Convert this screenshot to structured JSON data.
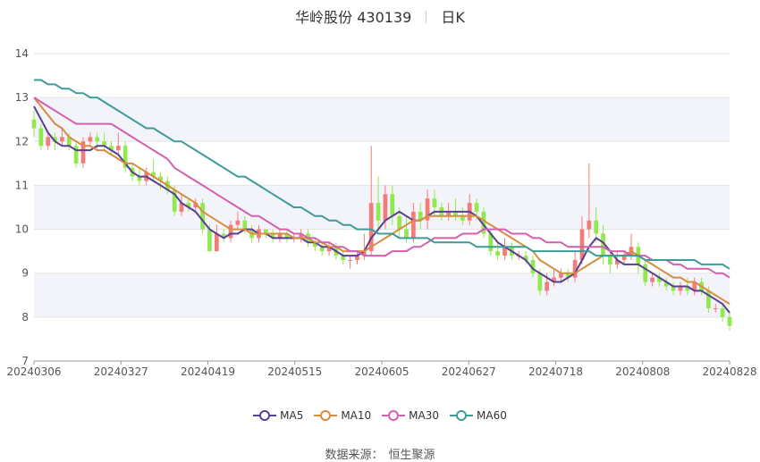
{
  "header": {
    "stock": "华岭股份 430139",
    "period": "日K"
  },
  "source": {
    "label": "数据来源：",
    "value": "恒生聚源"
  },
  "colors": {
    "up": "#f47b7b",
    "down": "#91e84f",
    "ma5": "#5b3f8f",
    "ma10": "#d98c3f",
    "ma30": "#d45fb0",
    "ma60": "#3f9a9a"
  },
  "chart_data": {
    "type": "candlestick",
    "y_ticks": [
      "7",
      "8",
      "9",
      "10",
      "11",
      "12",
      "13",
      "14"
    ],
    "ylim": [
      7,
      14
    ],
    "x_tick_labels": [
      "20240306",
      "20240327",
      "20240419",
      "20240515",
      "20240605",
      "20240627",
      "20240718",
      "20240808",
      "20240828"
    ],
    "legend": [
      {
        "name": "MA5",
        "color": "#5b3f8f"
      },
      {
        "name": "MA10",
        "color": "#d98c3f"
      },
      {
        "name": "MA30",
        "color": "#d45fb0"
      },
      {
        "name": "MA60",
        "color": "#3f9a9a"
      }
    ],
    "candles": [
      [
        12.5,
        12.3,
        12.7,
        12.1
      ],
      [
        12.3,
        11.9,
        12.4,
        11.8
      ],
      [
        11.9,
        12.1,
        12.2,
        11.8
      ],
      [
        12.1,
        12.0,
        12.2,
        11.8
      ],
      [
        12.0,
        12.1,
        12.3,
        11.9
      ],
      [
        12.1,
        11.9,
        12.2,
        11.8
      ],
      [
        11.9,
        11.5,
        12.0,
        11.4
      ],
      [
        11.5,
        12.0,
        12.1,
        11.4
      ],
      [
        12.0,
        12.1,
        12.2,
        11.9
      ],
      [
        12.1,
        12.0,
        12.2,
        11.8
      ],
      [
        12.0,
        11.9,
        12.2,
        11.8
      ],
      [
        11.9,
        11.8,
        12.0,
        11.7
      ],
      [
        11.8,
        11.9,
        12.2,
        11.7
      ],
      [
        11.9,
        11.4,
        12.0,
        11.3
      ],
      [
        11.4,
        11.2,
        11.5,
        11.1
      ],
      [
        11.2,
        11.1,
        11.4,
        11.0
      ],
      [
        11.1,
        11.3,
        11.4,
        11.0
      ],
      [
        11.3,
        11.2,
        11.6,
        11.1
      ],
      [
        11.2,
        11.1,
        11.3,
        10.9
      ],
      [
        11.1,
        10.9,
        11.2,
        10.8
      ],
      [
        10.9,
        10.4,
        11.0,
        10.3
      ],
      [
        10.4,
        10.6,
        10.8,
        10.3
      ],
      [
        10.6,
        10.5,
        10.7,
        10.4
      ],
      [
        10.5,
        10.6,
        10.7,
        10.4
      ],
      [
        10.6,
        10.0,
        10.7,
        9.9
      ],
      [
        10.0,
        9.5,
        10.1,
        9.5
      ],
      [
        9.5,
        9.9,
        10.1,
        9.5
      ],
      [
        9.9,
        9.8,
        10.0,
        9.7
      ],
      [
        9.8,
        10.1,
        10.2,
        9.7
      ],
      [
        10.1,
        10.2,
        10.4,
        10.0
      ],
      [
        10.2,
        10.0,
        10.3,
        9.9
      ],
      [
        10.0,
        9.8,
        10.1,
        9.7
      ],
      [
        9.8,
        10.0,
        10.1,
        9.7
      ],
      [
        10.0,
        9.9,
        10.0,
        9.8
      ],
      [
        9.9,
        9.8,
        10.0,
        9.7
      ],
      [
        9.8,
        9.9,
        10.0,
        9.7
      ],
      [
        9.9,
        9.8,
        10.0,
        9.7
      ],
      [
        9.8,
        9.8,
        9.9,
        9.7
      ],
      [
        9.8,
        9.9,
        10.0,
        9.7
      ],
      [
        9.9,
        9.7,
        10.0,
        9.6
      ],
      [
        9.7,
        9.6,
        9.8,
        9.5
      ],
      [
        9.6,
        9.5,
        9.7,
        9.4
      ],
      [
        9.5,
        9.6,
        9.7,
        9.4
      ],
      [
        9.6,
        9.4,
        9.7,
        9.3
      ],
      [
        9.4,
        9.3,
        9.5,
        9.2
      ],
      [
        9.3,
        9.3,
        9.4,
        9.1
      ],
      [
        9.3,
        9.4,
        9.5,
        9.2
      ],
      [
        9.4,
        9.5,
        9.9,
        9.3
      ],
      [
        9.5,
        10.6,
        11.9,
        9.4
      ],
      [
        10.6,
        10.2,
        11.2,
        10.0
      ],
      [
        10.2,
        10.8,
        11.0,
        10.0
      ],
      [
        10.8,
        10.3,
        11.0,
        10.1
      ],
      [
        10.3,
        10.0,
        10.5,
        9.8
      ],
      [
        10.0,
        9.8,
        10.3,
        9.7
      ],
      [
        9.8,
        10.4,
        10.6,
        9.7
      ],
      [
        10.4,
        10.2,
        10.6,
        10.0
      ],
      [
        10.2,
        10.7,
        10.9,
        10.0
      ],
      [
        10.7,
        10.5,
        10.9,
        10.3
      ],
      [
        10.5,
        10.3,
        10.6,
        10.2
      ],
      [
        10.3,
        10.4,
        10.6,
        10.2
      ],
      [
        10.4,
        10.3,
        10.7,
        10.2
      ],
      [
        10.3,
        10.2,
        10.5,
        10.1
      ],
      [
        10.2,
        10.6,
        10.8,
        10.1
      ],
      [
        10.6,
        10.4,
        10.7,
        10.2
      ],
      [
        10.4,
        9.9,
        10.5,
        9.8
      ],
      [
        9.9,
        9.5,
        10.0,
        9.4
      ],
      [
        9.5,
        9.4,
        9.7,
        9.3
      ],
      [
        9.4,
        9.6,
        9.8,
        9.3
      ],
      [
        9.6,
        9.4,
        9.7,
        9.3
      ],
      [
        9.4,
        9.4,
        9.5,
        9.3
      ],
      [
        9.4,
        9.3,
        9.5,
        9.2
      ],
      [
        9.3,
        9.0,
        9.4,
        8.9
      ],
      [
        9.0,
        8.6,
        9.1,
        8.5
      ],
      [
        8.6,
        8.8,
        9.0,
        8.5
      ],
      [
        8.8,
        8.9,
        9.1,
        8.7
      ],
      [
        8.9,
        9.0,
        9.1,
        8.8
      ],
      [
        9.0,
        8.9,
        9.1,
        8.8
      ],
      [
        8.9,
        9.3,
        9.5,
        8.8
      ],
      [
        9.3,
        10.0,
        10.3,
        9.2
      ],
      [
        10.0,
        10.2,
        11.5,
        9.8
      ],
      [
        10.2,
        9.9,
        10.5,
        9.7
      ],
      [
        9.9,
        9.4,
        10.1,
        9.2
      ],
      [
        9.4,
        9.2,
        9.5,
        9.0
      ],
      [
        9.2,
        9.3,
        9.5,
        9.1
      ],
      [
        9.3,
        9.4,
        9.5,
        9.2
      ],
      [
        9.4,
        9.6,
        9.9,
        9.3
      ],
      [
        9.6,
        9.2,
        9.7,
        9.0
      ],
      [
        9.2,
        8.8,
        9.3,
        8.7
      ],
      [
        8.8,
        8.9,
        9.0,
        8.7
      ],
      [
        8.9,
        8.8,
        9.0,
        8.7
      ],
      [
        8.8,
        8.7,
        8.9,
        8.6
      ],
      [
        8.7,
        8.6,
        8.8,
        8.5
      ],
      [
        8.6,
        8.7,
        8.8,
        8.5
      ],
      [
        8.7,
        8.6,
        8.9,
        8.5
      ],
      [
        8.6,
        8.8,
        8.9,
        8.5
      ],
      [
        8.8,
        8.6,
        8.9,
        8.5
      ],
      [
        8.6,
        8.2,
        8.7,
        8.1
      ],
      [
        8.2,
        8.2,
        8.3,
        8.1
      ],
      [
        8.2,
        8.0,
        8.3,
        7.9
      ],
      [
        8.0,
        7.8,
        8.1,
        7.7
      ]
    ],
    "ma5": [
      12.8,
      12.5,
      12.2,
      12.0,
      11.9,
      11.9,
      11.8,
      11.8,
      11.8,
      11.9,
      11.9,
      11.8,
      11.7,
      11.5,
      11.3,
      11.2,
      11.2,
      11.1,
      11.0,
      10.9,
      10.8,
      10.6,
      10.5,
      10.4,
      10.2,
      10.0,
      9.9,
      9.8,
      9.9,
      9.9,
      10.0,
      10.0,
      9.9,
      9.9,
      9.8,
      9.8,
      9.8,
      9.8,
      9.8,
      9.7,
      9.7,
      9.6,
      9.6,
      9.5,
      9.4,
      9.4,
      9.4,
      9.5,
      9.8,
      10.0,
      10.2,
      10.3,
      10.4,
      10.3,
      10.2,
      10.2,
      10.3,
      10.4,
      10.4,
      10.4,
      10.4,
      10.4,
      10.4,
      10.3,
      10.1,
      9.9,
      9.7,
      9.6,
      9.5,
      9.4,
      9.3,
      9.1,
      9.0,
      8.9,
      8.8,
      8.8,
      8.9,
      9.0,
      9.3,
      9.6,
      9.8,
      9.7,
      9.5,
      9.3,
      9.2,
      9.2,
      9.2,
      9.1,
      9.0,
      8.9,
      8.8,
      8.7,
      8.7,
      8.7,
      8.6,
      8.6,
      8.5,
      8.4,
      8.3,
      8.1
    ],
    "ma10": [
      13.0,
      12.8,
      12.6,
      12.4,
      12.3,
      12.1,
      12.0,
      11.9,
      11.9,
      11.8,
      11.8,
      11.7,
      11.6,
      11.5,
      11.5,
      11.4,
      11.3,
      11.2,
      11.1,
      11.0,
      10.9,
      10.8,
      10.7,
      10.6,
      10.4,
      10.3,
      10.2,
      10.1,
      10.0,
      10.0,
      10.0,
      9.9,
      9.9,
      9.9,
      9.9,
      9.9,
      9.9,
      9.8,
      9.8,
      9.8,
      9.7,
      9.7,
      9.6,
      9.6,
      9.5,
      9.5,
      9.5,
      9.5,
      9.6,
      9.7,
      9.8,
      9.9,
      10.0,
      10.1,
      10.2,
      10.2,
      10.3,
      10.3,
      10.3,
      10.3,
      10.3,
      10.3,
      10.3,
      10.3,
      10.2,
      10.1,
      10.0,
      9.9,
      9.8,
      9.7,
      9.6,
      9.5,
      9.3,
      9.2,
      9.1,
      9.0,
      9.0,
      9.0,
      9.1,
      9.2,
      9.3,
      9.4,
      9.4,
      9.4,
      9.4,
      9.5,
      9.4,
      9.3,
      9.2,
      9.1,
      9.0,
      8.9,
      8.9,
      8.8,
      8.8,
      8.7,
      8.6,
      8.5,
      8.4,
      8.3
    ],
    "ma30": [
      13.0,
      12.9,
      12.8,
      12.7,
      12.6,
      12.5,
      12.4,
      12.4,
      12.4,
      12.4,
      12.4,
      12.4,
      12.3,
      12.2,
      12.1,
      12.0,
      11.9,
      11.8,
      11.7,
      11.6,
      11.4,
      11.3,
      11.2,
      11.1,
      11.0,
      10.9,
      10.8,
      10.7,
      10.6,
      10.5,
      10.4,
      10.3,
      10.3,
      10.2,
      10.1,
      10.0,
      10.0,
      9.9,
      9.9,
      9.8,
      9.8,
      9.7,
      9.7,
      9.6,
      9.6,
      9.5,
      9.5,
      9.4,
      9.4,
      9.4,
      9.4,
      9.5,
      9.5,
      9.5,
      9.6,
      9.6,
      9.7,
      9.8,
      9.8,
      9.8,
      9.8,
      9.9,
      9.9,
      9.9,
      10.0,
      10.0,
      10.0,
      10.0,
      9.9,
      9.9,
      9.9,
      9.8,
      9.8,
      9.7,
      9.7,
      9.7,
      9.6,
      9.6,
      9.6,
      9.6,
      9.6,
      9.6,
      9.5,
      9.5,
      9.5,
      9.4,
      9.4,
      9.4,
      9.3,
      9.3,
      9.3,
      9.2,
      9.2,
      9.1,
      9.1,
      9.1,
      9.1,
      9.0,
      9.0,
      8.9
    ],
    "ma60": [
      13.4,
      13.4,
      13.3,
      13.3,
      13.2,
      13.2,
      13.1,
      13.1,
      13.0,
      13.0,
      12.9,
      12.8,
      12.7,
      12.6,
      12.5,
      12.4,
      12.3,
      12.3,
      12.2,
      12.1,
      12.0,
      12.0,
      11.9,
      11.8,
      11.7,
      11.6,
      11.5,
      11.4,
      11.3,
      11.2,
      11.2,
      11.1,
      11.0,
      10.9,
      10.8,
      10.7,
      10.6,
      10.5,
      10.5,
      10.4,
      10.3,
      10.3,
      10.2,
      10.2,
      10.1,
      10.1,
      10.0,
      10.0,
      10.0,
      9.9,
      9.9,
      9.9,
      9.8,
      9.8,
      9.8,
      9.8,
      9.8,
      9.7,
      9.7,
      9.7,
      9.7,
      9.7,
      9.7,
      9.6,
      9.6,
      9.6,
      9.6,
      9.6,
      9.6,
      9.6,
      9.6,
      9.5,
      9.5,
      9.5,
      9.5,
      9.5,
      9.5,
      9.5,
      9.5,
      9.5,
      9.4,
      9.4,
      9.4,
      9.4,
      9.4,
      9.4,
      9.4,
      9.3,
      9.3,
      9.3,
      9.3,
      9.3,
      9.3,
      9.3,
      9.3,
      9.2,
      9.2,
      9.2,
      9.2,
      9.1
    ]
  }
}
